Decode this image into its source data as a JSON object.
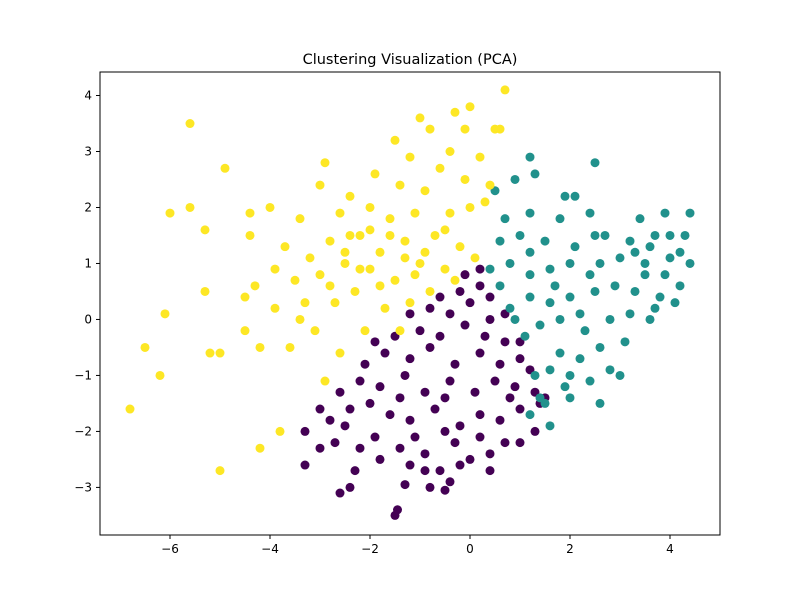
{
  "chart_data": {
    "type": "scatter",
    "title": "Clustering Visualization (PCA)",
    "xlabel": "",
    "ylabel": "",
    "xlim": [
      -7.4,
      5.0
    ],
    "ylim": [
      -3.85,
      4.42
    ],
    "xticks": [
      -6,
      -4,
      -2,
      0,
      2,
      4
    ],
    "yticks": [
      -3,
      -2,
      -1,
      0,
      1,
      2,
      3,
      4
    ],
    "xtick_labels": [
      "−6",
      "−4",
      "−2",
      "0",
      "2",
      "4"
    ],
    "ytick_labels": [
      "−3",
      "−2",
      "−1",
      "0",
      "1",
      "2",
      "3",
      "4"
    ],
    "grid": false,
    "legend": false,
    "colors": [
      "#440154",
      "#21918c",
      "#fde725"
    ],
    "series": [
      {
        "color": "#440154",
        "points": [
          [
            -1.5,
            -3.5
          ],
          [
            -1.45,
            -3.4
          ],
          [
            -2.6,
            -3.1
          ],
          [
            -2.4,
            -3.0
          ],
          [
            -1.3,
            -2.95
          ],
          [
            -0.8,
            -3.0
          ],
          [
            -0.5,
            -3.05
          ],
          [
            -0.4,
            -2.9
          ],
          [
            -3.3,
            -2.6
          ],
          [
            -2.3,
            -2.7
          ],
          [
            -1.8,
            -2.5
          ],
          [
            -1.2,
            -2.6
          ],
          [
            -0.6,
            -2.7
          ],
          [
            -0.2,
            -2.6
          ],
          [
            -0.9,
            -2.7
          ],
          [
            0.4,
            -2.7
          ],
          [
            -3.3,
            -2.0
          ],
          [
            -3.0,
            -2.3
          ],
          [
            -2.7,
            -2.2
          ],
          [
            -2.2,
            -2.3
          ],
          [
            -1.9,
            -2.1
          ],
          [
            -1.4,
            -2.3
          ],
          [
            -0.9,
            -2.4
          ],
          [
            -0.3,
            -2.2
          ],
          [
            0.0,
            -2.5
          ],
          [
            0.4,
            -2.4
          ],
          [
            0.7,
            -2.2
          ],
          [
            1.0,
            -2.2
          ],
          [
            1.3,
            -2.0
          ],
          [
            -2.8,
            -1.8
          ],
          [
            -2.4,
            -1.6
          ],
          [
            -2.0,
            -1.5
          ],
          [
            -1.6,
            -1.7
          ],
          [
            -1.2,
            -1.8
          ],
          [
            -0.7,
            -1.6
          ],
          [
            -0.2,
            -1.9
          ],
          [
            0.2,
            -1.7
          ],
          [
            0.6,
            -1.8
          ],
          [
            1.0,
            -1.6
          ],
          [
            1.4,
            -1.5
          ],
          [
            -2.6,
            -1.3
          ],
          [
            -2.2,
            -1.1
          ],
          [
            -1.8,
            -1.2
          ],
          [
            -1.3,
            -1.0
          ],
          [
            -0.9,
            -1.3
          ],
          [
            -0.4,
            -1.1
          ],
          [
            0.1,
            -1.3
          ],
          [
            0.5,
            -1.1
          ],
          [
            0.9,
            -1.2
          ],
          [
            1.3,
            -1.3
          ],
          [
            1.5,
            -1.4
          ],
          [
            -2.1,
            -0.8
          ],
          [
            -1.7,
            -0.6
          ],
          [
            -1.2,
            -0.7
          ],
          [
            -0.8,
            -0.5
          ],
          [
            -0.3,
            -0.8
          ],
          [
            0.2,
            -0.6
          ],
          [
            0.6,
            -0.8
          ],
          [
            1.0,
            -0.7
          ],
          [
            1.2,
            -0.9
          ],
          [
            -1.9,
            -0.4
          ],
          [
            -1.5,
            -0.3
          ],
          [
            -1.0,
            -0.2
          ],
          [
            -0.6,
            -0.3
          ],
          [
            -0.1,
            -0.1
          ],
          [
            0.3,
            -0.3
          ],
          [
            0.7,
            -0.4
          ],
          [
            1.0,
            -0.4
          ],
          [
            -1.2,
            0.1
          ],
          [
            -0.8,
            0.2
          ],
          [
            -0.4,
            0.1
          ],
          [
            0.0,
            0.3
          ],
          [
            0.4,
            0.0
          ],
          [
            0.7,
            0.1
          ],
          [
            -0.6,
            0.4
          ],
          [
            -0.2,
            0.5
          ],
          [
            0.2,
            0.6
          ],
          [
            0.4,
            0.4
          ],
          [
            -0.1,
            0.8
          ],
          [
            0.2,
            0.9
          ],
          [
            -2.5,
            -1.9
          ],
          [
            -1.1,
            -2.1
          ],
          [
            -0.5,
            -2.0
          ],
          [
            0.2,
            -2.1
          ],
          [
            -3.0,
            -1.6
          ],
          [
            -1.4,
            -1.4
          ],
          [
            -0.5,
            -1.4
          ],
          [
            0.8,
            -1.4
          ]
        ]
      },
      {
        "color": "#21918c",
        "points": [
          [
            1.2,
            -1.7
          ],
          [
            1.6,
            -1.9
          ],
          [
            1.5,
            -1.5
          ],
          [
            2.0,
            -1.4
          ],
          [
            2.6,
            -1.5
          ],
          [
            2.0,
            -1.0
          ],
          [
            2.4,
            -1.1
          ],
          [
            3.0,
            -1.0
          ],
          [
            1.3,
            -1.0
          ],
          [
            1.6,
            -0.9
          ],
          [
            1.8,
            -0.6
          ],
          [
            2.2,
            -0.7
          ],
          [
            2.6,
            -0.5
          ],
          [
            3.1,
            -0.4
          ],
          [
            1.1,
            -0.3
          ],
          [
            1.4,
            -0.1
          ],
          [
            1.8,
            0.0
          ],
          [
            2.3,
            -0.2
          ],
          [
            2.8,
            0.0
          ],
          [
            3.2,
            0.1
          ],
          [
            3.6,
            0.0
          ],
          [
            0.8,
            0.2
          ],
          [
            1.2,
            0.4
          ],
          [
            1.6,
            0.3
          ],
          [
            2.0,
            0.4
          ],
          [
            2.5,
            0.5
          ],
          [
            2.9,
            0.6
          ],
          [
            3.3,
            0.5
          ],
          [
            3.8,
            0.4
          ],
          [
            4.2,
            0.6
          ],
          [
            0.4,
            0.9
          ],
          [
            0.8,
            1.0
          ],
          [
            1.2,
            0.8
          ],
          [
            1.6,
            0.9
          ],
          [
            2.0,
            1.0
          ],
          [
            2.6,
            1.0
          ],
          [
            3.0,
            1.1
          ],
          [
            3.5,
            1.0
          ],
          [
            4.0,
            1.1
          ],
          [
            4.4,
            1.0
          ],
          [
            0.6,
            1.4
          ],
          [
            1.0,
            1.5
          ],
          [
            1.5,
            1.4
          ],
          [
            2.1,
            1.3
          ],
          [
            2.7,
            1.5
          ],
          [
            3.2,
            1.4
          ],
          [
            3.7,
            1.5
          ],
          [
            4.3,
            1.5
          ],
          [
            0.7,
            1.8
          ],
          [
            1.2,
            1.9
          ],
          [
            1.8,
            1.8
          ],
          [
            2.4,
            1.9
          ],
          [
            3.9,
            1.9
          ],
          [
            4.4,
            1.9
          ],
          [
            0.5,
            2.3
          ],
          [
            0.9,
            2.5
          ],
          [
            1.3,
            2.6
          ],
          [
            1.9,
            2.2
          ],
          [
            2.5,
            2.8
          ],
          [
            1.2,
            2.9
          ],
          [
            3.5,
            0.8
          ],
          [
            3.9,
            0.8
          ],
          [
            4.1,
            0.3
          ],
          [
            3.7,
            0.2
          ],
          [
            2.5,
            1.5
          ],
          [
            1.2,
            1.2
          ],
          [
            0.6,
            0.6
          ],
          [
            2.8,
            -0.9
          ],
          [
            1.9,
            -1.2
          ],
          [
            2.2,
            0.1
          ],
          [
            3.3,
            1.2
          ],
          [
            4.0,
            1.5
          ],
          [
            1.4,
            -1.4
          ],
          [
            2.1,
            2.2
          ],
          [
            3.4,
            1.8
          ],
          [
            0.9,
            0.0
          ],
          [
            1.7,
            0.6
          ],
          [
            2.4,
            0.8
          ],
          [
            3.6,
            1.3
          ],
          [
            4.2,
            1.2
          ]
        ]
      },
      {
        "color": "#fde725",
        "points": [
          [
            -6.8,
            -1.6
          ],
          [
            -6.5,
            -0.5
          ],
          [
            -6.2,
            -1.0
          ],
          [
            -6.0,
            1.9
          ],
          [
            -6.1,
            0.1
          ],
          [
            -5.6,
            3.5
          ],
          [
            -5.6,
            2.0
          ],
          [
            -5.3,
            1.6
          ],
          [
            -5.3,
            0.5
          ],
          [
            -5.2,
            -0.6
          ],
          [
            -5.0,
            -0.6
          ],
          [
            -5.0,
            -2.7
          ],
          [
            -4.9,
            2.7
          ],
          [
            -4.5,
            0.4
          ],
          [
            -4.5,
            -0.2
          ],
          [
            -4.4,
            1.5
          ],
          [
            -4.4,
            1.9
          ],
          [
            -4.3,
            0.6
          ],
          [
            -4.2,
            -2.3
          ],
          [
            -4.2,
            -0.5
          ],
          [
            -4.0,
            2.0
          ],
          [
            -3.9,
            0.9
          ],
          [
            -3.9,
            0.2
          ],
          [
            -3.8,
            -2.0
          ],
          [
            -3.7,
            1.3
          ],
          [
            -3.6,
            -0.5
          ],
          [
            -3.5,
            0.7
          ],
          [
            -3.4,
            1.8
          ],
          [
            -3.3,
            0.3
          ],
          [
            -3.2,
            1.1
          ],
          [
            -3.1,
            -0.2
          ],
          [
            -3.0,
            2.4
          ],
          [
            -3.0,
            0.8
          ],
          [
            -2.9,
            2.8
          ],
          [
            -2.9,
            -1.1
          ],
          [
            -2.8,
            1.4
          ],
          [
            -2.7,
            0.3
          ],
          [
            -2.6,
            1.9
          ],
          [
            -2.6,
            -0.6
          ],
          [
            -2.5,
            1.0
          ],
          [
            -2.4,
            2.2
          ],
          [
            -2.3,
            0.5
          ],
          [
            -2.2,
            1.5
          ],
          [
            -2.1,
            -0.2
          ],
          [
            -2.0,
            2.0
          ],
          [
            -2.0,
            0.9
          ],
          [
            -1.9,
            2.6
          ],
          [
            -1.8,
            1.2
          ],
          [
            -1.7,
            0.2
          ],
          [
            -1.6,
            1.8
          ],
          [
            -1.5,
            3.2
          ],
          [
            -1.5,
            0.7
          ],
          [
            -1.4,
            2.4
          ],
          [
            -1.3,
            1.4
          ],
          [
            -1.2,
            2.9
          ],
          [
            -1.2,
            0.3
          ],
          [
            -1.1,
            1.9
          ],
          [
            -1.0,
            3.6
          ],
          [
            -1.0,
            1.0
          ],
          [
            -0.9,
            2.3
          ],
          [
            -0.8,
            3.4
          ],
          [
            -0.7,
            1.5
          ],
          [
            -0.6,
            2.7
          ],
          [
            -0.5,
            0.9
          ],
          [
            -0.4,
            3.0
          ],
          [
            -0.4,
            1.9
          ],
          [
            -0.3,
            3.7
          ],
          [
            -0.2,
            1.3
          ],
          [
            -0.1,
            2.5
          ],
          [
            -0.1,
            3.4
          ],
          [
            0.0,
            3.8
          ],
          [
            0.0,
            2.0
          ],
          [
            0.1,
            1.1
          ],
          [
            0.2,
            2.9
          ],
          [
            0.3,
            2.1
          ],
          [
            0.4,
            2.4
          ],
          [
            0.5,
            3.4
          ],
          [
            0.6,
            3.4
          ],
          [
            0.7,
            4.1
          ],
          [
            -2.5,
            1.2
          ],
          [
            -1.8,
            0.6
          ],
          [
            -1.3,
            1.1
          ],
          [
            -0.8,
            0.5
          ],
          [
            -0.5,
            1.6
          ],
          [
            -2.2,
            0.9
          ],
          [
            -1.6,
            1.5
          ],
          [
            -0.9,
            1.2
          ],
          [
            -2.8,
            0.6
          ],
          [
            -3.4,
            0.0
          ],
          [
            -1.4,
            -0.2
          ],
          [
            -0.3,
            0.7
          ],
          [
            -2.0,
            1.6
          ],
          [
            -1.1,
            0.8
          ],
          [
            -2.4,
            1.5
          ]
        ]
      }
    ]
  }
}
